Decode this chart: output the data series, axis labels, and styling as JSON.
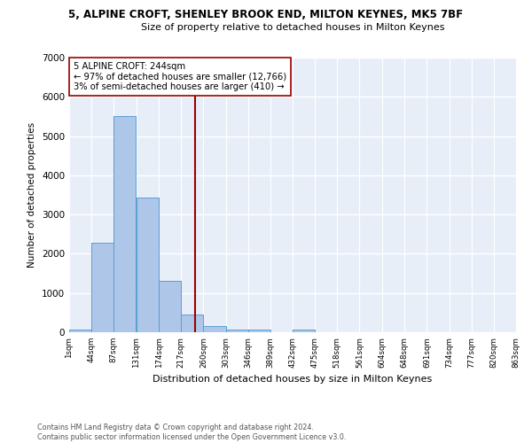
{
  "title1": "5, ALPINE CROFT, SHENLEY BROOK END, MILTON KEYNES, MK5 7BF",
  "title2": "Size of property relative to detached houses in Milton Keynes",
  "xlabel": "Distribution of detached houses by size in Milton Keynes",
  "ylabel": "Number of detached properties",
  "annotation_line1": "5 ALPINE CROFT: 244sqm",
  "annotation_line2": "← 97% of detached houses are smaller (12,766)",
  "annotation_line3": "3% of semi-detached houses are larger (410) →",
  "property_size": 244,
  "bin_edges": [
    1,
    44,
    87,
    131,
    174,
    217,
    260,
    303,
    346,
    389,
    432,
    475,
    518,
    561,
    604,
    648,
    691,
    734,
    777,
    820,
    863
  ],
  "bar_heights": [
    75,
    2280,
    5500,
    3440,
    1300,
    460,
    155,
    75,
    75,
    0,
    75,
    0,
    0,
    0,
    0,
    0,
    0,
    0,
    0,
    0
  ],
  "bar_color": "#aec6e8",
  "bar_edge_color": "#5a9fd4",
  "vline_color": "#9b0000",
  "vline_x": 244,
  "ylim": [
    0,
    7000
  ],
  "annotation_box_color": "white",
  "annotation_box_edge": "#9b0000",
  "footnote1": "Contains HM Land Registry data © Crown copyright and database right 2024.",
  "footnote2": "Contains public sector information licensed under the Open Government Licence v3.0.",
  "background_color": "#e8eef8",
  "grid_color": "white"
}
